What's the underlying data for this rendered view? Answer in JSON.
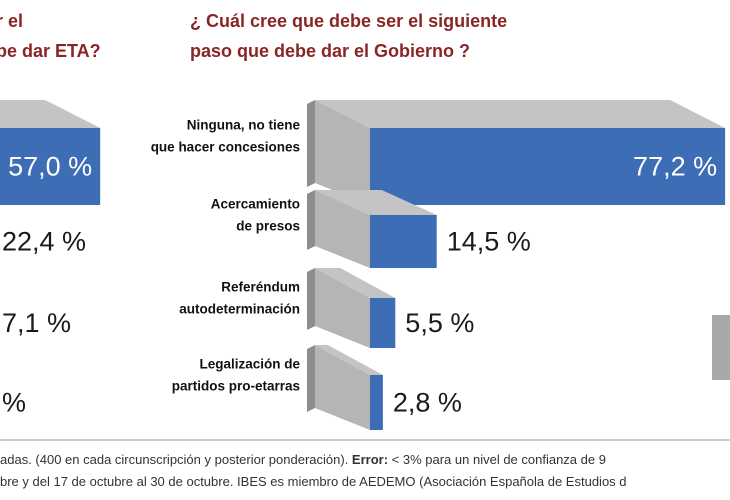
{
  "chart_data": [
    {
      "type": "bar3d",
      "title_lines": [
        "r el",
        "be dar ETA?"
      ],
      "categories": [
        null,
        null,
        null,
        null
      ],
      "values": [
        57.0,
        22.4,
        7.1,
        null
      ],
      "value_labels": [
        "57,0 %",
        "22,4 %",
        "7,1 %",
        "%"
      ],
      "color": "#3d6db5"
    },
    {
      "type": "bar3d",
      "title_lines": [
        "¿ Cuál cree que debe ser el siguiente",
        "paso que debe dar el Gobierno ?"
      ],
      "categories": [
        [
          "Ninguna, no tiene",
          "que hacer concesiones"
        ],
        [
          "Acercamiento",
          "de presos"
        ],
        [
          "Referéndum",
          "autodeterminación"
        ],
        [
          "Legalización de",
          "partidos pro-etarras"
        ]
      ],
      "values": [
        77.2,
        14.5,
        5.5,
        2.8
      ],
      "value_labels": [
        "77,2 %",
        "14,5 %",
        "5,5 %",
        "2,8 %"
      ],
      "color": "#3d6db5"
    }
  ],
  "source_note": {
    "lines": [
      [
        "adas. (400 en cada circunscripción y posterior ponderación). ",
        "Error:",
        " < 3% para un nivel de confianza de 9"
      ],
      [
        "bre y del 17 de octubre al 30 de octubre. IBES es miembro de AEDEMO (Asociación Española de Estudios d"
      ]
    ]
  }
}
